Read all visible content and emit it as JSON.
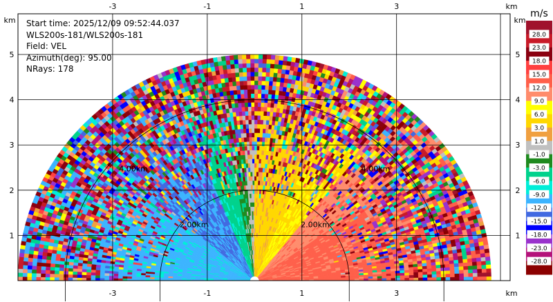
{
  "info": {
    "start_time": "Start time: 2025/12/09 09:52:44.037",
    "station": "WLS200s-181/WLS200s-181",
    "field": "Field: VEL",
    "azimuth": "Azimuth(deg): 95.00",
    "nrays": "NRays: 178"
  },
  "chart_data": {
    "type": "heatmap",
    "title": "",
    "xlabel": "km",
    "ylabel": "km",
    "xlim": [
      -5,
      5.4
    ],
    "ylim": [
      0,
      5.9
    ],
    "x_ticks": [
      "-3",
      "-1",
      "1",
      "3"
    ],
    "y_ticks": [
      "1",
      "2",
      "3",
      "4",
      "5"
    ],
    "x_unit_label": "km",
    "y_unit_label": "km",
    "grid": true,
    "range_rings": [
      {
        "label": "2.00km",
        "radius_km": 2
      },
      {
        "label": "4.00km",
        "radius_km": 4
      }
    ],
    "max_range_km": 5.0,
    "colorbar": {
      "unit": "m/s",
      "labels": [
        "28.0",
        "23.0",
        "18.0",
        "15.0",
        "12.0",
        "9.0",
        "6.0",
        "3.0",
        "1.0",
        "-1.0",
        "-3.0",
        "-6.0",
        "-9.0",
        "-12.0",
        "-15.0",
        "-18.0",
        "-23.0",
        "-28.0"
      ],
      "colors": [
        "#a0122c",
        "#c81a28",
        "#8a0010",
        "#ff4040",
        "#ff5f4a",
        "#ff8c6c",
        "#ffff00",
        "#ffd700",
        "#f0a040",
        "#c0c0c0",
        "#1f8a1f",
        "#00d28c",
        "#00eed8",
        "#3cb4ff",
        "#4169e1",
        "#0000ff",
        "#9932cc",
        "#b4127a",
        "#8b0000"
      ]
    },
    "sectors": [
      {
        "from_deg": 0,
        "to_deg": 40,
        "value": -10
      },
      {
        "from_deg": 40,
        "to_deg": 68,
        "value": -12
      },
      {
        "from_deg": 68,
        "to_deg": 80,
        "value": -5
      },
      {
        "from_deg": 80,
        "to_deg": 86,
        "value": -2
      },
      {
        "from_deg": 86,
        "to_deg": 90,
        "value": 0
      },
      {
        "from_deg": 90,
        "to_deg": 112,
        "value": 4
      },
      {
        "from_deg": 112,
        "to_deg": 128,
        "value": 6
      },
      {
        "from_deg": 128,
        "to_deg": 145,
        "value": 11
      },
      {
        "from_deg": 145,
        "to_deg": 180,
        "value": 13
      }
    ]
  }
}
